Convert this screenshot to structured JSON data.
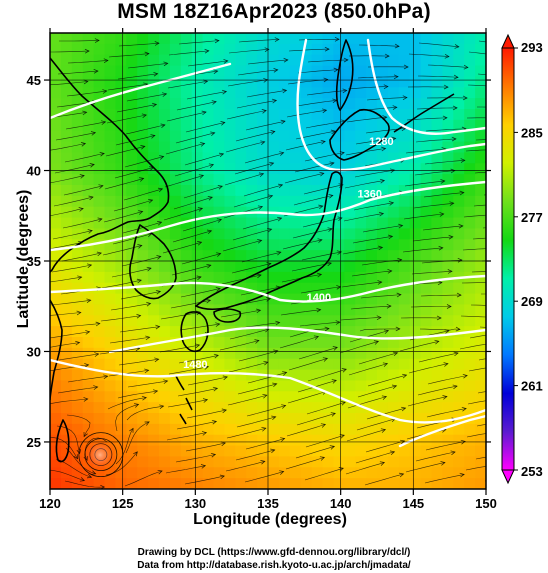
{
  "header": {
    "title": "MSM 18Z16Apr2023 (850.0hPa)"
  },
  "footer": {
    "credit_line_1": "Drawing by DCL (https://www.gfd-dennou.org/library/dcl/)",
    "credit_line_2": "Data from http://database.rish.kyoto-u.ac.jp/arch/jmadata/"
  },
  "colors": {
    "colorbar_stops": [
      "#ff00ff",
      "#5b1bd0",
      "#0000d8",
      "#0078ff",
      "#00cbe8",
      "#00f0a8",
      "#14d814",
      "#6fe01b",
      "#d0f000",
      "#ffd000",
      "#ff7800",
      "#ff1a00"
    ],
    "contour": "#ffffff",
    "streamline": "#000000"
  },
  "chart_data": {
    "type": "heatmap",
    "title": "MSM 18Z16Apr2023 (850.0hPa)",
    "xlabel": "Longitude (degrees)",
    "ylabel": "Latitude  (degrees)",
    "xlim": [
      120,
      150
    ],
    "ylim": [
      22.4,
      47.6
    ],
    "x_ticks": [
      120,
      125,
      130,
      135,
      140,
      145,
      150
    ],
    "y_ticks": [
      25,
      30,
      35,
      40,
      45
    ],
    "grid": true,
    "colorbar": {
      "min": 253,
      "max": 293,
      "ticks": [
        253,
        261,
        269,
        277,
        285,
        293
      ],
      "extend": "both",
      "units": "K"
    },
    "temperature_field_K": {
      "grid_lon": [
        120,
        125,
        130,
        135,
        140,
        145,
        150
      ],
      "grid_lat": [
        47.5,
        45,
        40,
        35,
        30,
        25,
        22.5
      ],
      "values": [
        [
          278,
          276,
          272,
          269,
          267,
          267,
          271
        ],
        [
          278,
          275,
          271,
          268,
          266,
          267,
          272
        ],
        [
          279,
          276,
          272,
          269,
          268,
          271,
          276
        ],
        [
          283,
          280,
          276,
          274,
          274,
          277,
          280
        ],
        [
          288,
          285,
          282,
          279,
          279,
          281,
          283
        ],
        [
          291,
          289,
          287,
          286,
          285,
          286,
          287
        ],
        [
          292,
          290,
          289,
          288,
          287,
          287,
          288
        ]
      ]
    },
    "height_contours_m": [
      {
        "label": "1280",
        "lon": 142.8,
        "lat": 41.4
      },
      {
        "label": "1360",
        "lon": 142.0,
        "lat": 38.5
      },
      {
        "label": "1400",
        "lon": 138.5,
        "lat": 32.8
      },
      {
        "label": "1480",
        "lon": 130.0,
        "lat": 29.1
      }
    ],
    "wind": {
      "representation": "streamlines",
      "prevailing_direction": "westerly",
      "low_center": {
        "lon": 123.5,
        "lat": 24.3
      }
    }
  }
}
